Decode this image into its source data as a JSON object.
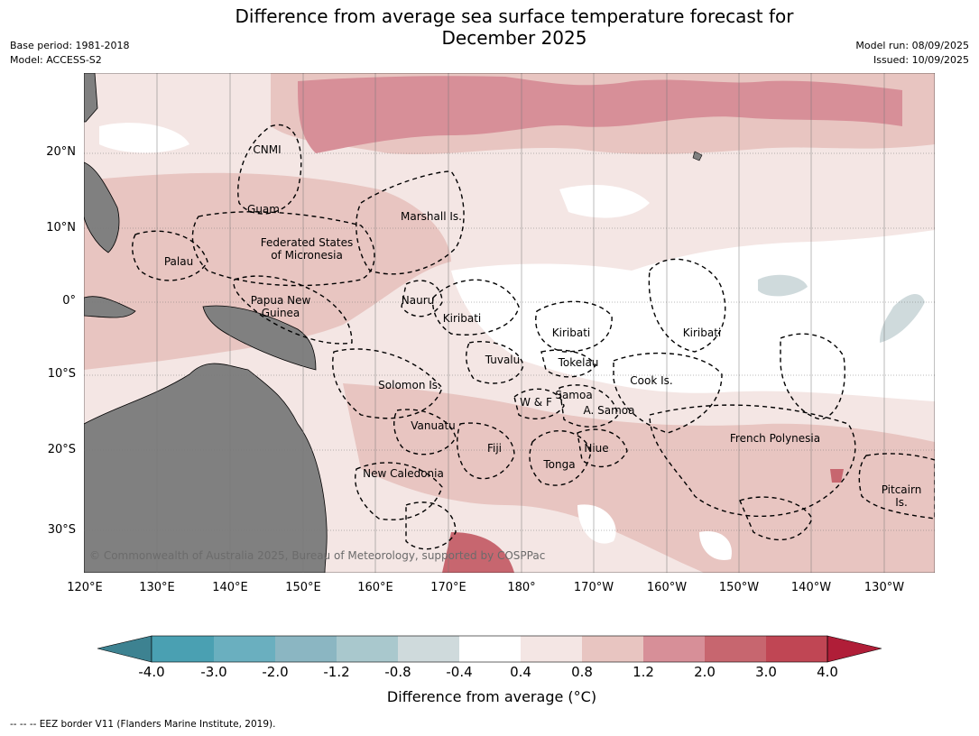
{
  "header": {
    "title_line1": "Difference from average sea surface temperature forecast for",
    "title_line2": "December 2025",
    "base_period": "Base period: 1981-2018",
    "model": "Model: ACCESS-S2",
    "model_run": "Model run: 08/09/2025",
    "issued": "Issued: 10/09/2025"
  },
  "axes": {
    "lon_labels": [
      "120°E",
      "130°E",
      "140°E",
      "150°E",
      "160°E",
      "170°E",
      "180°",
      "170°W",
      "160°W",
      "150°W",
      "140°W",
      "130°W"
    ],
    "lat_labels": [
      "20°N",
      "10°N",
      "0°",
      "10°S",
      "20°S",
      "30°S"
    ]
  },
  "regions": [
    "CNMI",
    "Guam",
    "Marshall Is.",
    "Federated States\nof Micronesia",
    "Palau",
    "Nauru",
    "Papua New\nGuinea",
    "Kiribati",
    "Kiribati",
    "Kiribati",
    "Tuvalu",
    "Tokelau",
    "Cook Is.",
    "Solomon Is.",
    "W & F",
    "Samoa",
    "A. Samoa",
    "Vanuatu",
    "Fiji",
    "Niue",
    "Tonga",
    "French Polynesia",
    "New Caledonia",
    "Pitcairn\nIs."
  ],
  "copyright": "© Commonwealth of Australia 2025, Bureau of Meteorology, supported by COSPPac",
  "colorbar": {
    "ticks": [
      "-4.0",
      "-3.0",
      "-2.0",
      "-1.2",
      "-0.8",
      "-0.4",
      "0.4",
      "0.8",
      "1.2",
      "2.0",
      "3.0",
      "4.0"
    ],
    "colors": [
      "#3d8291",
      "#4aa0b2",
      "#6aafbf",
      "#8bb6c2",
      "#a9c8cd",
      "#cfdadc",
      "#ffffff",
      "#f4e6e4",
      "#e8c5c1",
      "#d78f98",
      "#c7666f",
      "#c04654",
      "#b01e38"
    ],
    "title": "Difference from average (°C)"
  },
  "legend": {
    "eez_text": "--  --  -- EEZ border V11 (Flanders Marine Institute, 2019)."
  },
  "colors": {
    "land": "#808080",
    "grid": "#777777",
    "eez": "#000000"
  }
}
